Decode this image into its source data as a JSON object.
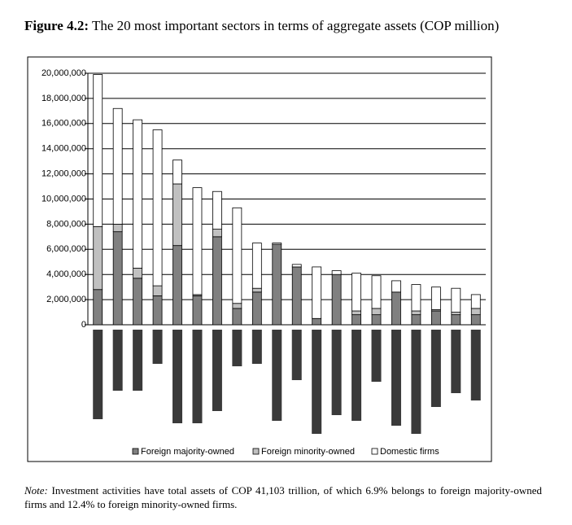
{
  "figure_label": "Figure 4.2:",
  "note_label": "Note:",
  "note_text": "Investment activities have total assets of COP 41,103 trillion, of which 6.9% belongs to foreign majority-owned firms and 12.4% to foreign minority-owned firms.",
  "chart_data": {
    "type": "stacked_bar",
    "title": "The 20 most important sectors in terms of aggregate assets (COP million)",
    "categories": [
      null,
      null,
      null,
      null,
      null,
      null,
      null,
      null,
      null,
      null,
      null,
      null,
      null,
      null,
      null,
      null,
      null,
      null,
      null,
      null
    ],
    "series": [
      {
        "name": "Foreign majority-owned",
        "color": "#808080",
        "values": [
          2800000,
          7400000,
          3700000,
          2300000,
          6300000,
          2300000,
          7000000,
          1300000,
          2600000,
          6400000,
          4600000,
          500000,
          4000000,
          800000,
          800000,
          2600000,
          800000,
          1100000,
          800000,
          800000
        ]
      },
      {
        "name": "Foreign minority-owned",
        "color": "#c0c0c0",
        "values": [
          5000000,
          600000,
          800000,
          800000,
          4900000,
          100000,
          600000,
          400000,
          300000,
          0,
          0,
          0,
          0,
          300000,
          500000,
          0,
          300000,
          100000,
          200000,
          500000
        ]
      },
      {
        "name": "Domestic firms",
        "color": "#ffffff",
        "values": [
          12100000,
          9200000,
          11800000,
          12400000,
          1900000,
          8500000,
          3000000,
          7600000,
          3600000,
          100000,
          200000,
          4100000,
          300000,
          3000000,
          2600000,
          900000,
          2100000,
          1800000,
          1900000,
          1100000
        ]
      }
    ],
    "ylim": [
      0,
      20000000
    ],
    "yticks": [
      0,
      {
        "value": 2000000,
        "label": "2,000,000"
      },
      {
        "value": 4000000,
        "label": "4,000,000"
      },
      {
        "value": 6000000,
        "label": "6,000,000"
      },
      {
        "value": 8000000,
        "label": "8,000,000"
      },
      {
        "value": 10000000,
        "label": "10,000,000"
      },
      {
        "value": 12000000,
        "label": "12,000,000"
      },
      {
        "value": 14000000,
        "label": "14,000,000"
      },
      {
        "value": 16000000,
        "label": "16,000,000"
      },
      {
        "value": 18000000,
        "label": "18,000,000"
      },
      {
        "value": 20000000,
        "label": "20,000,000"
      }
    ],
    "grid": true,
    "legend": "bottom"
  }
}
